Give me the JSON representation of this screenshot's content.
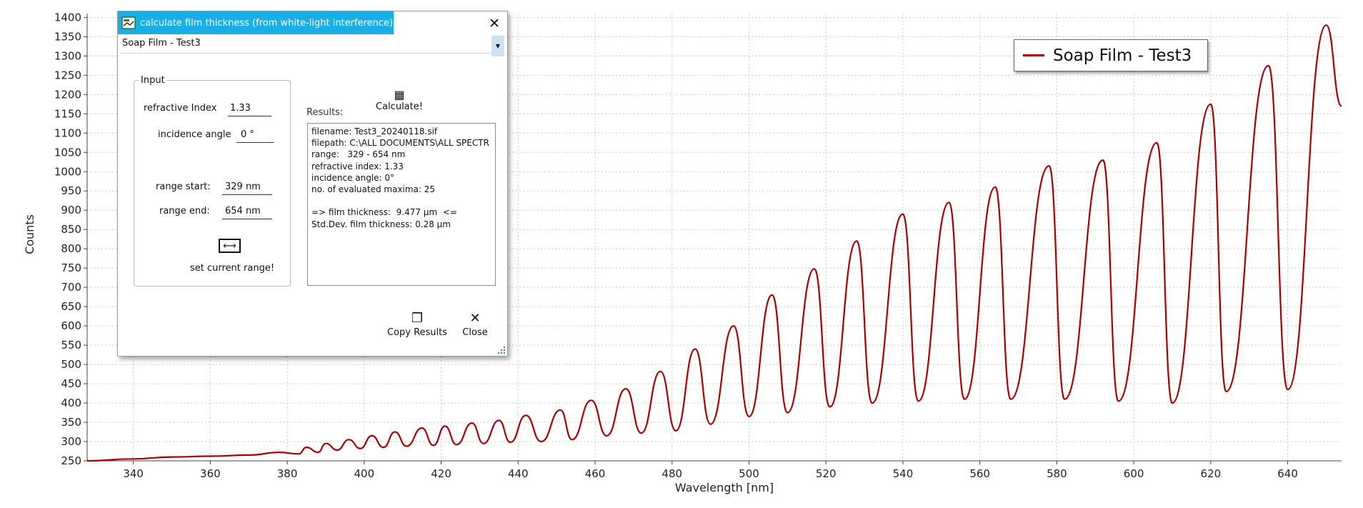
{
  "chart_data": {
    "type": "line",
    "xlabel": "Wavelength [nm]",
    "ylabel": "Counts",
    "xlim": [
      328,
      654
    ],
    "ylim": [
      250,
      1410
    ],
    "x_ticks": [
      340,
      360,
      380,
      400,
      420,
      440,
      460,
      480,
      500,
      520,
      540,
      560,
      580,
      600,
      620,
      640
    ],
    "y_ticks": [
      250,
      300,
      350,
      400,
      450,
      500,
      550,
      600,
      650,
      700,
      750,
      800,
      850,
      900,
      950,
      1000,
      1050,
      1100,
      1150,
      1200,
      1250,
      1300,
      1350,
      1400
    ],
    "grid": true,
    "legend_position": "top-right",
    "series": [
      {
        "name": "Soap Film - Test3",
        "color": "#a80000",
        "points": [
          [
            328,
            250
          ],
          [
            340,
            255
          ],
          [
            350,
            260
          ],
          [
            360,
            262
          ],
          [
            370,
            265
          ],
          [
            378,
            272
          ],
          [
            383,
            268
          ],
          [
            385,
            285
          ],
          [
            388,
            272
          ],
          [
            390,
            295
          ],
          [
            393,
            278
          ],
          [
            396,
            305
          ],
          [
            399,
            282
          ],
          [
            402,
            315
          ],
          [
            405,
            285
          ],
          [
            408,
            325
          ],
          [
            411,
            288
          ],
          [
            415,
            335
          ],
          [
            418,
            290
          ],
          [
            421,
            340
          ],
          [
            424,
            292
          ],
          [
            428,
            348
          ],
          [
            431,
            295
          ],
          [
            435,
            355
          ],
          [
            438,
            298
          ],
          [
            442,
            368
          ],
          [
            446,
            300
          ],
          [
            451,
            382
          ],
          [
            454,
            305
          ],
          [
            459,
            407
          ],
          [
            463,
            315
          ],
          [
            468,
            437
          ],
          [
            472,
            322
          ],
          [
            477,
            482
          ],
          [
            481,
            328
          ],
          [
            486,
            540
          ],
          [
            490,
            345
          ],
          [
            496,
            600
          ],
          [
            500,
            365
          ],
          [
            506,
            680
          ],
          [
            510,
            375
          ],
          [
            517,
            748
          ],
          [
            521,
            390
          ],
          [
            528,
            820
          ],
          [
            532,
            400
          ],
          [
            540,
            890
          ],
          [
            544,
            405
          ],
          [
            552,
            920
          ],
          [
            556,
            410
          ],
          [
            564,
            960
          ],
          [
            568,
            410
          ],
          [
            578,
            1015
          ],
          [
            582,
            410
          ],
          [
            592,
            1030
          ],
          [
            596,
            405
          ],
          [
            606,
            1075
          ],
          [
            610,
            400
          ],
          [
            620,
            1175
          ],
          [
            624,
            430
          ],
          [
            635,
            1275
          ],
          [
            640,
            435
          ],
          [
            650,
            1380
          ],
          [
            654,
            1170
          ]
        ]
      }
    ]
  },
  "dialog": {
    "title": "calculate film thickness (from white-light interference)",
    "close_glyph": "✕",
    "selected_dataset": "Soap Film - Test3",
    "input_group_label": "Input",
    "refractive_index_label": "refractive Index",
    "refractive_index_value": "1.33",
    "incidence_angle_label": "incidence angle",
    "incidence_angle_value": "0 °",
    "range_start_label": "range start:",
    "range_start_value": "329 nm",
    "range_end_label": "range end:",
    "range_end_value": "654 nm",
    "set_range_icon_glyph": "⟷",
    "set_range_label": "set current range!",
    "results_label": "Results:",
    "calculate_label": "Calculate!",
    "calculate_icon_glyph": "▦",
    "results_text": "filename: Test3_20240118.sif\nfilepath: C:\\ALL DOCUMENTS\\ALL SPECTR\nrange:   329 - 654 nm\nrefractive index: 1.33\nincidence angle: 0°\nno. of evaluated maxima: 25\n\n=> film thickness:  9.477 µm  <=\nStd.Dev. film thickness: 0.28 µm",
    "copy_results_label": "Copy Results",
    "copy_icon_glyph": "❐",
    "close_label": "Close",
    "close_icon_glyph": "✕"
  },
  "colors": {
    "titlebar": "#19aee6",
    "trace": "#a80000",
    "grid": "#c8c8c8"
  }
}
